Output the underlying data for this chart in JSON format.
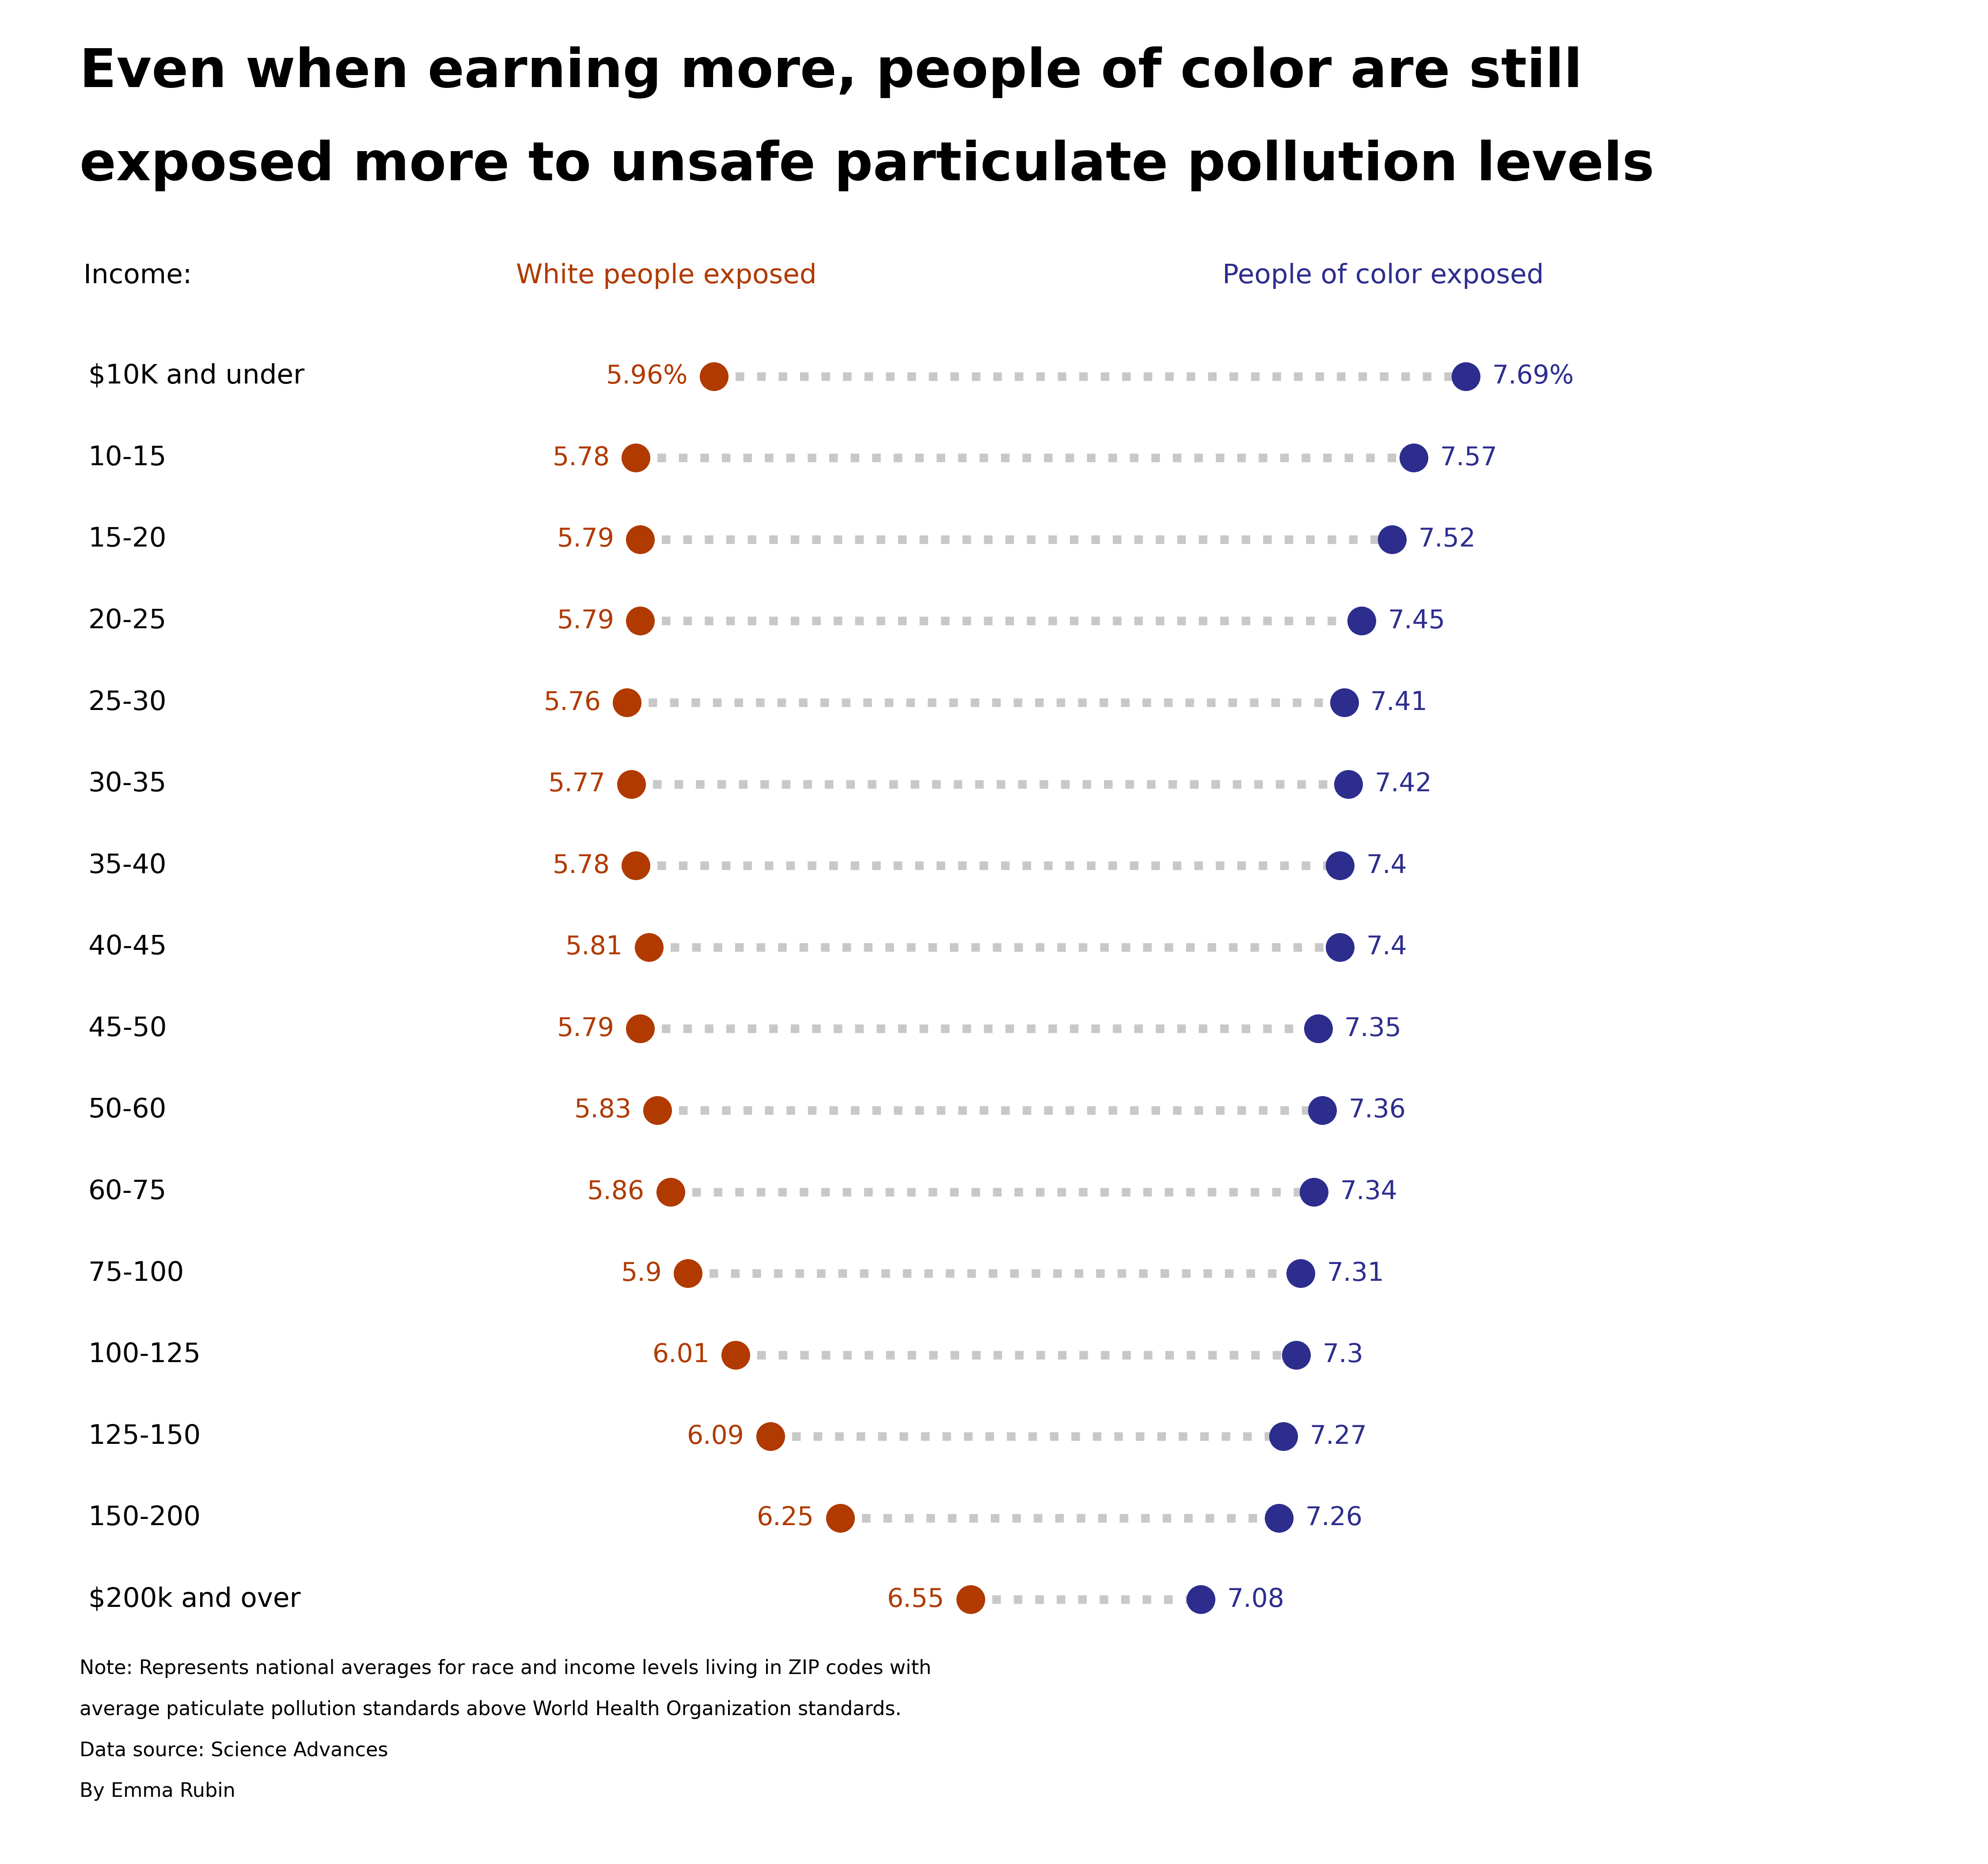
{
  "title_line1": "Even when earning more, people of color are still",
  "title_line2": "exposed more to unsafe particulate pollution levels",
  "income_label": "Income:",
  "legend_white": "White people exposed",
  "legend_poc": "People of color exposed",
  "categories": [
    "$10K and under",
    "10-15",
    "15-20",
    "20-25",
    "25-30",
    "30-35",
    "35-40",
    "40-45",
    "45-50",
    "50-60",
    "60-75",
    "75-100",
    "100-125",
    "125-150",
    "150-200",
    "$200k and over"
  ],
  "white_values": [
    5.96,
    5.78,
    5.79,
    5.79,
    5.76,
    5.77,
    5.78,
    5.81,
    5.79,
    5.83,
    5.86,
    5.9,
    6.01,
    6.09,
    6.25,
    6.55
  ],
  "poc_values": [
    7.69,
    7.57,
    7.52,
    7.45,
    7.41,
    7.42,
    7.4,
    7.4,
    7.35,
    7.36,
    7.34,
    7.31,
    7.3,
    7.27,
    7.26,
    7.08
  ],
  "white_labels": [
    "5.96%",
    "5.78",
    "5.79",
    "5.79",
    "5.76",
    "5.77",
    "5.78",
    "5.81",
    "5.79",
    "5.83",
    "5.86",
    "5.9",
    "6.01",
    "6.09",
    "6.25",
    "6.55"
  ],
  "poc_labels": [
    "7.69%",
    "7.57",
    "7.52",
    "7.45",
    "7.41",
    "7.42",
    "7.4",
    "7.4",
    "7.35",
    "7.36",
    "7.34",
    "7.31",
    "7.3",
    "7.27",
    "7.26",
    "7.08"
  ],
  "white_color": "#b03a00",
  "poc_color": "#2d2d8e",
  "connector_color": "#c8c8c8",
  "background_color": "#ffffff",
  "note_line1": "Note: Represents national averages for race and income levels living in ZIP codes with",
  "note_line2": "average paticulate pollution standards above World Health Organization standards.",
  "note_line3": "Data source: Science Advances",
  "note_line4": "By Emma Rubin",
  "xlim_min": 4.5,
  "xlim_max": 8.8,
  "dot_size": 2200,
  "connector_lw": 14,
  "title_fontsize": 88,
  "label_fontsize": 44,
  "category_fontsize": 44,
  "value_fontsize": 42,
  "note_fontsize": 32,
  "legend_fontsize": 44
}
